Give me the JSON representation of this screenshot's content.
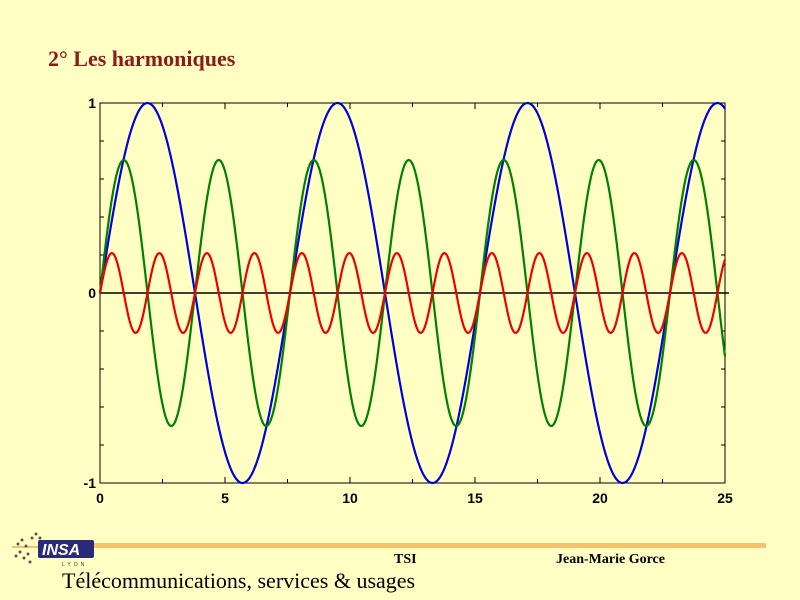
{
  "slide": {
    "title": "2° Les harmoniques",
    "footer_center": "TSI",
    "footer_right": "Jean-Marie Gorce",
    "footer_bottom": "Télécommunications, services & usages",
    "logo_text": "INSA",
    "logo_sub": "LYON"
  },
  "colors": {
    "background": "#ffffc4",
    "title": "#8b1a1a",
    "footer_bar": "#f5c26b",
    "series": [
      "#0000dd",
      "#008000",
      "#ee0000"
    ]
  },
  "chart_data": {
    "type": "line",
    "title": "",
    "xlabel": "",
    "ylabel": "",
    "xlim": [
      0,
      25
    ],
    "ylim": [
      -1,
      1
    ],
    "xticks": [
      0,
      5,
      10,
      15,
      20,
      25
    ],
    "yticks": [
      -1,
      0,
      1
    ],
    "grid": false,
    "zero_line": true,
    "series": [
      {
        "color": "#0000dd",
        "amplitude": 1.0,
        "period": 7.6,
        "phase_start": 0
      },
      {
        "color": "#008000",
        "amplitude": 0.7,
        "period": 3.8,
        "phase_start": 0
      },
      {
        "color": "#ee0000",
        "amplitude": 0.21,
        "period": 1.9,
        "phase_start": 0
      }
    ]
  }
}
